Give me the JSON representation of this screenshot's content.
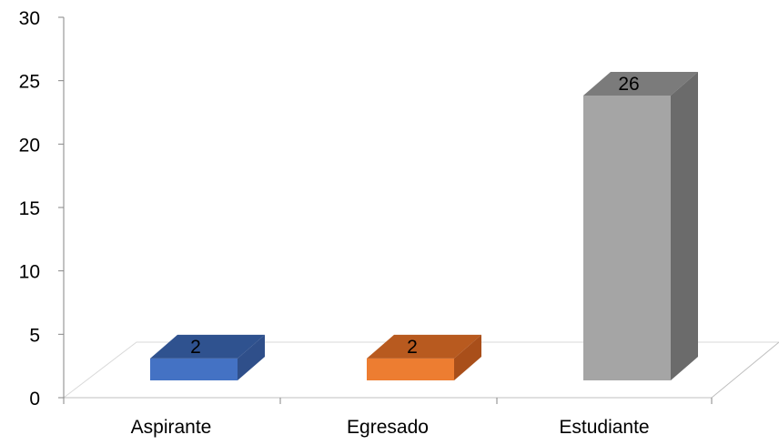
{
  "chart_data": {
    "type": "bar",
    "title": "",
    "xlabel": "",
    "ylabel": "",
    "categories": [
      "Aspirante",
      "Egresado",
      "Estudiante"
    ],
    "values": [
      2,
      2,
      26
    ],
    "data_labels": [
      "2",
      "2",
      "26"
    ],
    "ylim": [
      0,
      30
    ],
    "yticks": [
      "0",
      "5",
      "10",
      "15",
      "20",
      "25",
      "30"
    ],
    "grid": false,
    "legend": "none",
    "three_d": true,
    "colors": [
      {
        "front": "#4472C4",
        "top": "#2F528F",
        "side": "#2F4F8A"
      },
      {
        "front": "#ED7D31",
        "top": "#B85A1F",
        "side": "#A94F1A"
      },
      {
        "front": "#A5A5A5",
        "top": "#7B7B7B",
        "side": "#6B6B6B"
      }
    ]
  }
}
